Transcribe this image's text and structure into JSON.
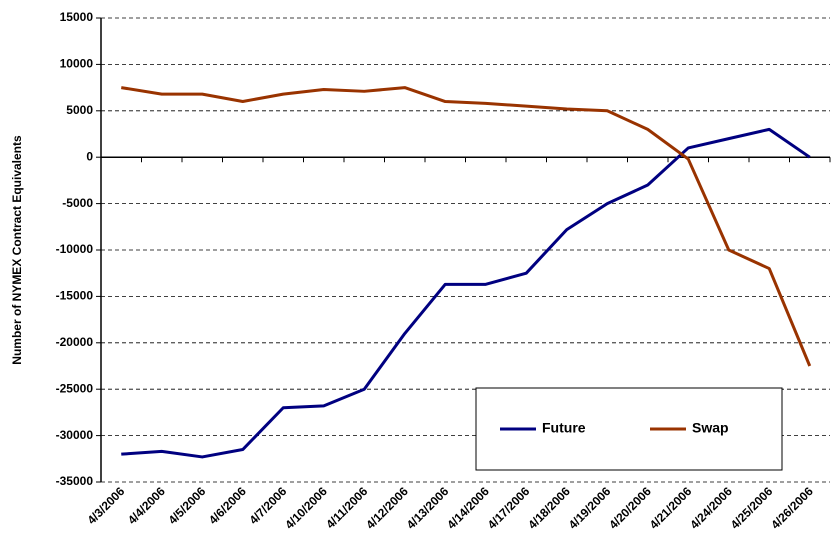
{
  "chart_data": {
    "type": "line",
    "y_label": "Number of NYMEX Contract Equivalents",
    "categories": [
      "4/3/2006",
      "4/4/2006",
      "4/5/2006",
      "4/6/2006",
      "4/7/2006",
      "4/10/2006",
      "4/11/2006",
      "4/12/2006",
      "4/13/2006",
      "4/14/2006",
      "4/17/2006",
      "4/18/2006",
      "4/19/2006",
      "4/20/2006",
      "4/21/2006",
      "4/24/2006",
      "4/25/2006",
      "4/26/2006"
    ],
    "series": [
      {
        "name": "Future",
        "color": "#000080",
        "values": [
          -32000,
          -31700,
          -32300,
          -31500,
          -27000,
          -26800,
          -25000,
          -19000,
          -13700,
          -13700,
          -12500,
          -7800,
          -5000,
          -3000,
          1000,
          2000,
          3000,
          0
        ]
      },
      {
        "name": "Swap",
        "color": "#993300",
        "values": [
          7500,
          6800,
          6800,
          6000,
          6800,
          7300,
          7100,
          7500,
          6000,
          5800,
          5500,
          5200,
          5000,
          3000,
          -200,
          -10000,
          -12000,
          -22500
        ]
      }
    ],
    "ylim": [
      -35000,
      15000
    ],
    "yticks": [
      -35000,
      -30000,
      -25000,
      -20000,
      -15000,
      -10000,
      -5000,
      0,
      5000,
      10000,
      15000
    ],
    "grid": true,
    "legend": "lower right"
  }
}
